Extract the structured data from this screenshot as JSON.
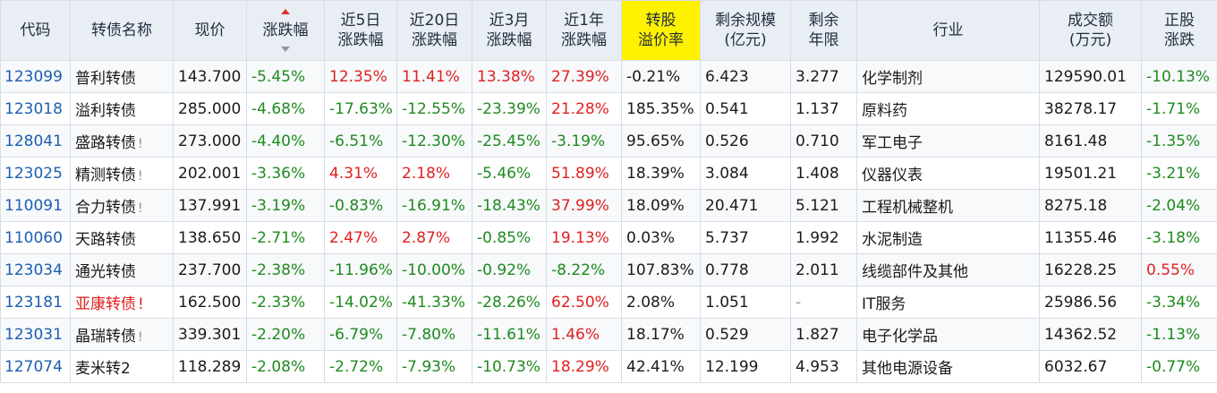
{
  "headers": [
    {
      "l1": "代码",
      "l2": ""
    },
    {
      "l1": "转债名称",
      "l2": ""
    },
    {
      "l1": "现价",
      "l2": ""
    },
    {
      "l1": "涨跌幅",
      "l2": ""
    },
    {
      "l1": "近5日",
      "l2": "涨跌幅"
    },
    {
      "l1": "近20日",
      "l2": "涨跌幅"
    },
    {
      "l1": "近3月",
      "l2": "涨跌幅"
    },
    {
      "l1": "近1年",
      "l2": "涨跌幅"
    },
    {
      "l1": "转股",
      "l2": "溢价率"
    },
    {
      "l1": "剩余规模",
      "l2": "(亿元)"
    },
    {
      "l1": "剩余",
      "l2": "年限"
    },
    {
      "l1": "行业",
      "l2": ""
    },
    {
      "l1": "成交额",
      "l2": "(万元)"
    },
    {
      "l1": "正股",
      "l2": "涨跌"
    }
  ],
  "sorted_column": "涨跌幅",
  "highlight_column": "转股溢价率",
  "colors": {
    "up": "#e02020",
    "down": "#1f8a1f",
    "code": "#1c5fb0",
    "highlight": "#fff200"
  },
  "rows": [
    {
      "code": "123099",
      "name": "普利转债",
      "warn": "",
      "name_red": false,
      "price": "143.700",
      "chg": "-5.45%",
      "d5": "12.35%",
      "d20": "11.41%",
      "m3": "13.38%",
      "y1": "27.39%",
      "premium": "-0.21%",
      "scale": "6.423",
      "years": "3.277",
      "industry": "化学制剂",
      "amount": "129590.01",
      "stock_chg": "-10.13%"
    },
    {
      "code": "123018",
      "name": "溢利转债",
      "warn": "",
      "name_red": false,
      "price": "285.000",
      "chg": "-4.68%",
      "d5": "-17.63%",
      "d20": "-12.55%",
      "m3": "-23.39%",
      "y1": "21.28%",
      "premium": "185.35%",
      "scale": "0.541",
      "years": "1.137",
      "industry": "原料药",
      "amount": "38278.17",
      "stock_chg": "-1.71%"
    },
    {
      "code": "128041",
      "name": "盛路转债",
      "warn": "!",
      "name_red": false,
      "price": "273.000",
      "chg": "-4.40%",
      "d5": "-6.51%",
      "d20": "-12.30%",
      "m3": "-25.45%",
      "y1": "-3.19%",
      "premium": "95.65%",
      "scale": "0.526",
      "years": "0.710",
      "industry": "军工电子",
      "amount": "8161.48",
      "stock_chg": "-1.35%"
    },
    {
      "code": "123025",
      "name": "精测转债",
      "warn": "!",
      "name_red": false,
      "price": "202.001",
      "chg": "-3.36%",
      "d5": "4.31%",
      "d20": "2.18%",
      "m3": "-5.46%",
      "y1": "51.89%",
      "premium": "18.39%",
      "scale": "3.084",
      "years": "1.408",
      "industry": "仪器仪表",
      "amount": "19501.21",
      "stock_chg": "-3.21%"
    },
    {
      "code": "110091",
      "name": "合力转债",
      "warn": "!",
      "name_red": false,
      "price": "137.991",
      "chg": "-3.19%",
      "d5": "-0.83%",
      "d20": "-16.91%",
      "m3": "-18.43%",
      "y1": "37.99%",
      "premium": "18.09%",
      "scale": "20.471",
      "years": "5.121",
      "industry": "工程机械整机",
      "amount": "8275.18",
      "stock_chg": "-2.04%"
    },
    {
      "code": "110060",
      "name": "天路转债",
      "warn": "",
      "name_red": false,
      "price": "138.650",
      "chg": "-2.71%",
      "d5": "2.47%",
      "d20": "2.87%",
      "m3": "-0.85%",
      "y1": "19.13%",
      "premium": "0.03%",
      "scale": "5.737",
      "years": "1.992",
      "industry": "水泥制造",
      "amount": "11355.46",
      "stock_chg": "-3.18%"
    },
    {
      "code": "123034",
      "name": "通光转债",
      "warn": "",
      "name_red": false,
      "price": "237.700",
      "chg": "-2.38%",
      "d5": "-11.96%",
      "d20": "-10.00%",
      "m3": "-0.92%",
      "y1": "-8.22%",
      "premium": "107.83%",
      "scale": "0.778",
      "years": "2.011",
      "industry": "线缆部件及其他",
      "amount": "16228.25",
      "stock_chg": "0.55%"
    },
    {
      "code": "123181",
      "name": "亚康转债",
      "warn": "!",
      "name_red": true,
      "price": "162.500",
      "chg": "-2.33%",
      "d5": "-14.02%",
      "d20": "-41.33%",
      "m3": "-28.26%",
      "y1": "62.50%",
      "premium": "2.08%",
      "scale": "1.051",
      "years": "-",
      "industry": "IT服务",
      "amount": "25986.56",
      "stock_chg": "-3.34%"
    },
    {
      "code": "123031",
      "name": "晶瑞转债",
      "warn": "!",
      "name_red": false,
      "price": "339.301",
      "chg": "-2.20%",
      "d5": "-6.79%",
      "d20": "-7.80%",
      "m3": "-11.61%",
      "y1": "1.46%",
      "premium": "18.17%",
      "scale": "0.529",
      "years": "1.827",
      "industry": "电子化学品",
      "amount": "14362.52",
      "stock_chg": "-1.13%"
    },
    {
      "code": "127074",
      "name": "麦米转2",
      "warn": "",
      "name_red": false,
      "price": "118.289",
      "chg": "-2.08%",
      "d5": "-2.72%",
      "d20": "-7.93%",
      "m3": "-10.73%",
      "y1": "18.29%",
      "premium": "42.41%",
      "scale": "12.199",
      "years": "4.953",
      "industry": "其他电源设备",
      "amount": "6032.67",
      "stock_chg": "-0.77%"
    }
  ]
}
